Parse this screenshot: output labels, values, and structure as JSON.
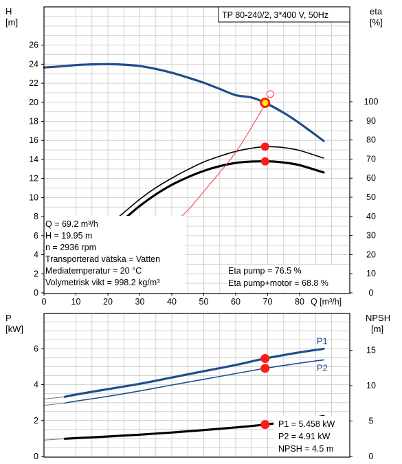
{
  "colors": {
    "curve_blue": "#1f4e8c",
    "op_point": "#ff1a1a",
    "op_point_yellow": "#ffee00",
    "eta_line": "#ff3333",
    "grid": "#d0d0d0"
  },
  "chart_data": [
    {
      "type": "line",
      "title": "TP 80-240/2, 3*400 V, 50Hz",
      "xlabel": "Q [m³/h]",
      "ylabel_left": [
        "H",
        "[m]"
      ],
      "ylabel_right": [
        "eta",
        "[%]"
      ],
      "xlim": [
        0,
        90
      ],
      "ylim": [
        0,
        28
      ],
      "eta_lim": [
        0,
        100
      ],
      "x_ticks": [
        0,
        10,
        20,
        30,
        40,
        50,
        60,
        70,
        80
      ],
      "y_ticks": [
        0,
        2,
        4,
        6,
        8,
        10,
        12,
        14,
        16,
        18,
        20,
        22,
        24,
        26
      ],
      "eta_ticks": [
        0,
        10,
        20,
        30,
        40,
        50,
        60,
        70,
        80,
        90,
        100
      ],
      "series": [
        {
          "key": "H",
          "axis": "left",
          "x": [
            0,
            6.5,
            10,
            15,
            20,
            25,
            30,
            35,
            40,
            45,
            50,
            55,
            60,
            65,
            69.2,
            75,
            80,
            87.5
          ],
          "y": [
            23.65,
            23.8,
            23.9,
            23.98,
            24.0,
            23.95,
            23.8,
            23.5,
            23.1,
            22.6,
            22.05,
            21.4,
            20.75,
            20.5,
            19.95,
            18.9,
            17.8,
            15.95
          ]
        },
        {
          "key": "eta_pump",
          "axis": "right",
          "x": [
            17,
            20,
            25,
            30,
            35,
            40,
            45,
            50,
            55,
            60,
            65,
            69.2,
            72,
            75,
            80,
            87.5
          ],
          "y": [
            30,
            35,
            42,
            49,
            55,
            60,
            64.5,
            68.5,
            71.5,
            74,
            75.7,
            76.5,
            76.4,
            76,
            74.5,
            70.5
          ]
        },
        {
          "key": "eta_pump_motor",
          "axis": "right",
          "x": [
            19,
            20,
            25,
            30,
            35,
            40,
            45,
            50,
            55,
            60,
            65,
            69.2,
            72,
            75,
            80,
            87.5
          ],
          "y": [
            30,
            31.5,
            38.5,
            45.5,
            51.5,
            56.5,
            60.5,
            63.8,
            66.3,
            68,
            68.7,
            68.8,
            68.7,
            68.2,
            66.8,
            63
          ]
        },
        {
          "key": "eta_thin",
          "axis": "right",
          "x": [
            43,
            46,
            49,
            52,
            55,
            58,
            61,
            64,
            66.5,
            68.5,
            69.2
          ],
          "y": [
            40,
            45,
            51,
            57,
            63,
            69,
            76,
            84,
            91,
            96.5,
            98.5
          ]
        }
      ],
      "operating_points": [
        {
          "x": 69.2,
          "y": 19.95,
          "axis": "left",
          "style": "yellow"
        },
        {
          "x": 69.2,
          "y": 76.5,
          "axis": "right",
          "style": "red"
        },
        {
          "x": 69.2,
          "y": 68.8,
          "axis": "right",
          "style": "red"
        },
        {
          "x": 70.8,
          "y": 104,
          "axis": "right",
          "style": "hollow"
        }
      ],
      "info_left": [
        "Q = 69.2 m³/h",
        "H = 19.95 m",
        "n = 2936 rpm",
        "Transporterad vätska = Vatten",
        "Mediatemperatur = 20 °C",
        "Volymetrisk vikt = 998.2 kg/m³"
      ],
      "info_right": [
        "Eta pump = 76.5 %",
        "Eta pump+motor = 68.8 %"
      ]
    },
    {
      "type": "line",
      "ylabel_left": [
        "P",
        "[kW]"
      ],
      "ylabel_right": [
        "NPSH",
        "[m]"
      ],
      "xlim": [
        0,
        90
      ],
      "ylim": [
        0,
        8
      ],
      "npsh_lim": [
        0,
        20
      ],
      "y_ticks": [
        0,
        2,
        4,
        6
      ],
      "npsh_ticks": [
        0,
        5,
        10,
        15
      ],
      "series": [
        {
          "key": "P1",
          "name": "P1",
          "axis": "left",
          "x": [
            0,
            6.5,
            10,
            20,
            30,
            40,
            50,
            60,
            69.2,
            80,
            87.5
          ],
          "y": [
            3.2,
            3.32,
            3.45,
            3.75,
            4.05,
            4.4,
            4.75,
            5.1,
            5.458,
            5.8,
            6.0
          ]
        },
        {
          "key": "P2",
          "name": "P2",
          "axis": "left",
          "x": [
            0,
            6.5,
            10,
            20,
            30,
            40,
            50,
            60,
            69.2,
            80,
            87.5
          ],
          "y": [
            2.85,
            2.97,
            3.08,
            3.35,
            3.65,
            3.98,
            4.3,
            4.62,
            4.91,
            5.2,
            5.38
          ]
        },
        {
          "key": "NPSH",
          "axis": "right",
          "x": [
            0,
            6.5,
            10,
            20,
            30,
            40,
            50,
            60,
            69.2,
            80,
            87.5
          ],
          "y": [
            2.3,
            2.5,
            2.58,
            2.82,
            3.08,
            3.38,
            3.72,
            4.1,
            4.5,
            5.15,
            5.7
          ]
        }
      ],
      "operating_points": [
        {
          "x": 69.2,
          "y": 5.458,
          "axis": "left"
        },
        {
          "x": 69.2,
          "y": 4.91,
          "axis": "left"
        },
        {
          "x": 69.2,
          "y": 4.5,
          "axis": "right"
        }
      ],
      "info_right": [
        "P1 = 5.458 kW",
        "P2 = 4.91 kW",
        "NPSH = 4.5 m"
      ]
    }
  ]
}
